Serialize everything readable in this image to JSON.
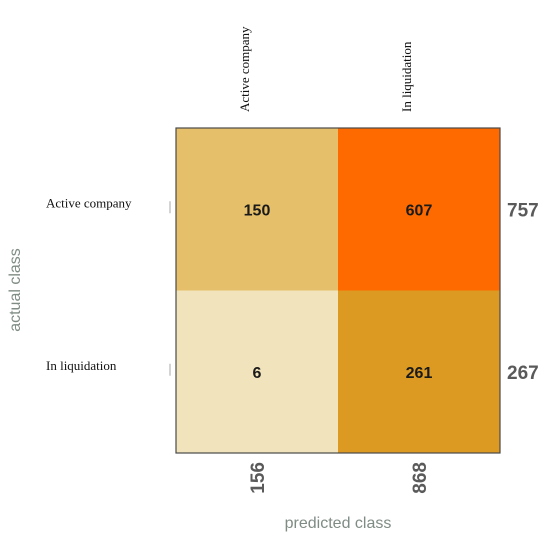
{
  "chart_data": {
    "type": "heatmap",
    "title": "",
    "xlabel": "predicted class",
    "ylabel": "actual class",
    "columns": [
      "Active company",
      "In liquidation"
    ],
    "rows": [
      "Active company",
      "In liquidation"
    ],
    "values": [
      [
        150,
        607
      ],
      [
        6,
        261
      ]
    ],
    "row_totals": [
      "757",
      "267"
    ],
    "column_totals": [
      "156",
      "868"
    ],
    "cell_colors": [
      [
        "#e5bf69",
        "#ff6a00"
      ],
      [
        "#f1e4bc",
        "#dd9a22"
      ]
    ],
    "grid": false
  }
}
